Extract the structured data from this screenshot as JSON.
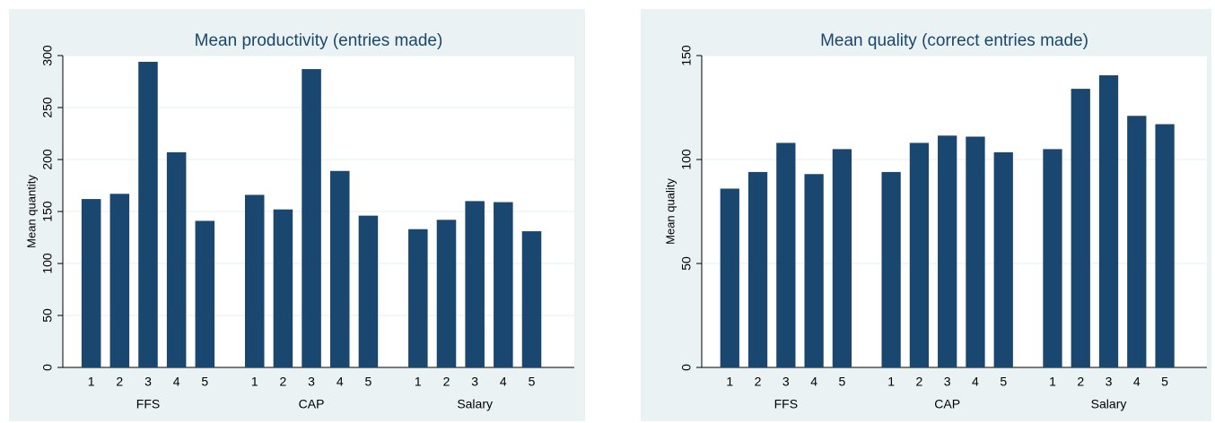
{
  "chart_data": [
    {
      "type": "bar",
      "title": "Mean productivity (entries made)",
      "ylabel": "Mean quantity",
      "categories": [
        "1",
        "2",
        "3",
        "4",
        "5"
      ],
      "groups": [
        {
          "label": "FFS",
          "values": [
            162,
            167,
            294,
            207,
            141
          ]
        },
        {
          "label": "CAP",
          "values": [
            166,
            152,
            287,
            189,
            146
          ]
        },
        {
          "label": "Salary",
          "values": [
            133,
            142,
            160,
            159,
            131
          ]
        }
      ],
      "color": "#1a476f",
      "ylim": [
        0,
        300
      ],
      "yticks": [
        0,
        50,
        100,
        150,
        200,
        250,
        300
      ],
      "grid": true
    },
    {
      "type": "bar",
      "title": "Mean quality (correct entries made)",
      "ylabel": "Mean quality",
      "categories": [
        "1",
        "2",
        "3",
        "4",
        "5"
      ],
      "groups": [
        {
          "label": "FFS",
          "values": [
            86,
            94,
            108,
            93,
            105
          ]
        },
        {
          "label": "CAP",
          "values": [
            94,
            108,
            111.5,
            111,
            103.5
          ]
        },
        {
          "label": "Salary",
          "values": [
            105,
            134,
            140.5,
            121,
            117
          ]
        }
      ],
      "color": "#1a476f",
      "ylim": [
        0,
        150
      ],
      "yticks": [
        0,
        50,
        100,
        150
      ],
      "grid": true
    }
  ]
}
